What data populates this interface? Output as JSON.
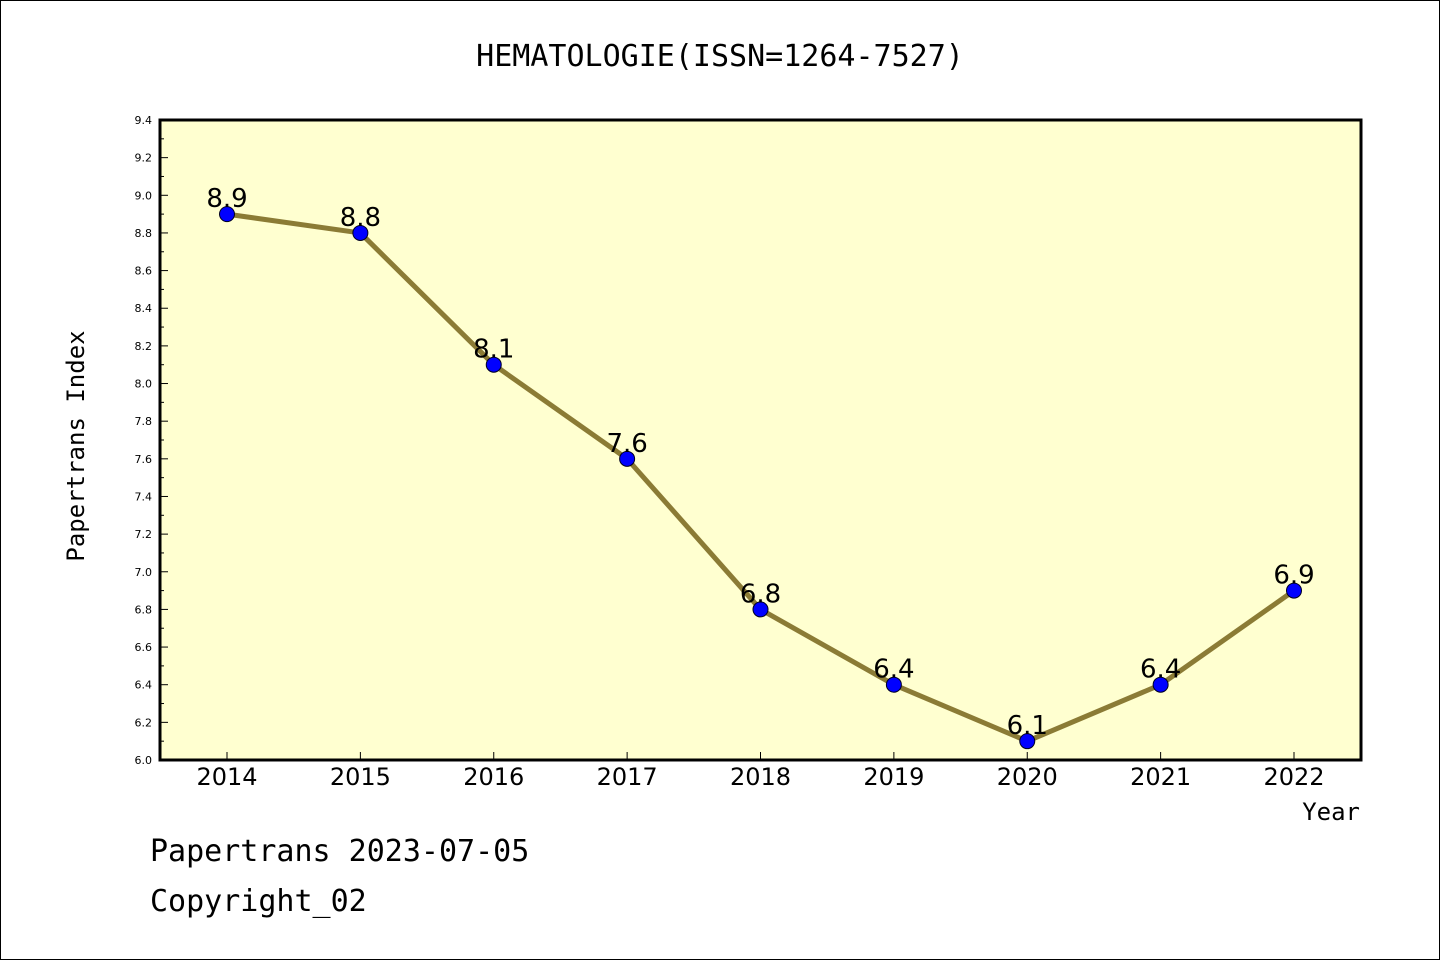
{
  "chart_data": {
    "type": "line",
    "title": "HEMATOLOGIE(ISSN=1264-7527)",
    "xlabel": "Year",
    "ylabel": "Papertrans Index",
    "categories": [
      "2014",
      "2015",
      "2016",
      "2017",
      "2018",
      "2019",
      "2020",
      "2021",
      "2022"
    ],
    "series": [
      {
        "values": [
          8.9,
          8.8,
          8.1,
          7.6,
          6.8,
          6.4,
          6.1,
          6.4,
          6.9
        ]
      }
    ],
    "data_labels": [
      "8.9",
      "8.8",
      "8.1",
      "7.6",
      "6.8",
      "6.4",
      "6.1",
      "6.4",
      "6.9"
    ],
    "ylim": [
      6.0,
      9.4
    ],
    "yticks": [
      "6.0",
      "6.2",
      "6.4",
      "6.6",
      "6.8",
      "7.0",
      "7.2",
      "7.4",
      "7.6",
      "7.8",
      "8.0",
      "8.2",
      "8.4",
      "8.6",
      "8.8",
      "9.0",
      "9.2",
      "9.4"
    ],
    "grid": false,
    "colors": {
      "plot_background": "#FFFFD0",
      "line": "#8B7B35",
      "marker": "#0000FF"
    }
  },
  "footer": {
    "date_line": "Papertrans 2023-07-05",
    "copyright": "Copyright_02"
  }
}
